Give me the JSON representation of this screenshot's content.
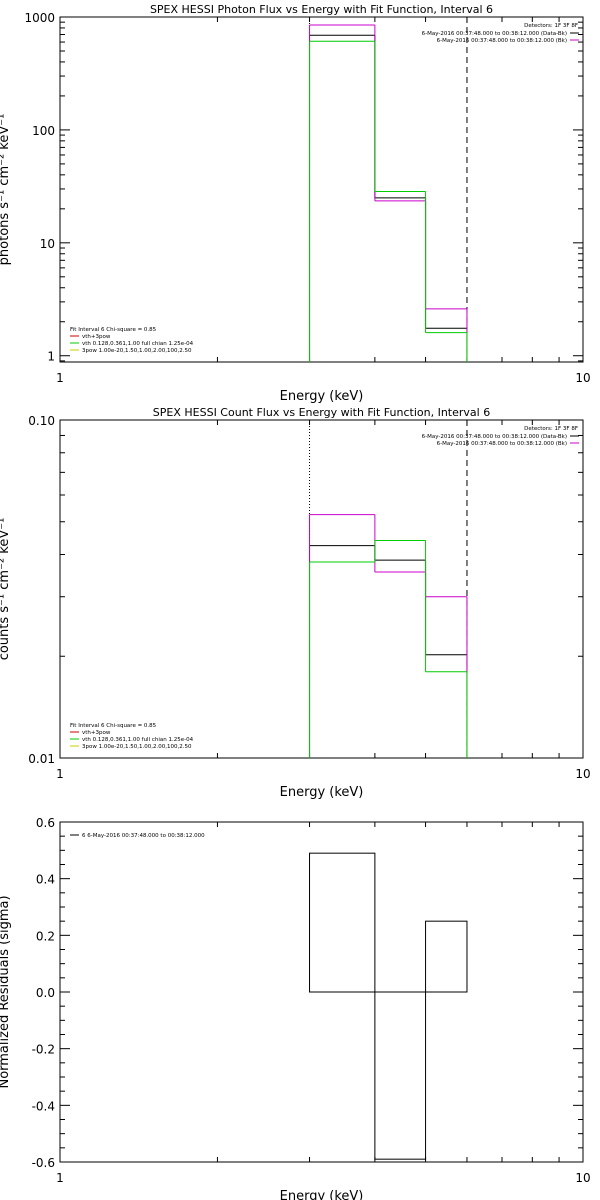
{
  "chart_data": [
    {
      "type": "line",
      "title": "SPEX HESSI Photon Flux vs Energy with Fit Function, Interval 6",
      "xlabel": "Energy (keV)",
      "ylabel": "photons s⁻¹ cm⁻² keV⁻¹",
      "xscale": "log",
      "yscale": "log",
      "xlim": [
        1,
        10
      ],
      "ylim": [
        0.88,
        1000
      ],
      "x_ticks": [
        {
          "v": 1,
          "label": "1"
        },
        {
          "v": 10,
          "label": "10"
        }
      ],
      "y_ticks": [
        {
          "v": 1,
          "label": "1"
        },
        {
          "v": 10,
          "label": "10"
        },
        {
          "v": 100,
          "label": "100"
        },
        {
          "v": 1000,
          "label": "1000"
        }
      ],
      "vlines": [
        {
          "x": 3,
          "style": "dotted",
          "color": "#000000"
        },
        {
          "x": 6,
          "style": "dashed",
          "color": "#000000"
        }
      ],
      "legend_top_right": {
        "header": "Detectors: 1F 3F 8F",
        "items": [
          {
            "text": "6-May-2016 00:37:48.000 to 00:38:12.000 (Data-Bk)",
            "color": "#000000"
          },
          {
            "text": "6-May-2016 00:37:48.000 to 00:38:12.000 (Bk)",
            "color": "#cc00cc"
          }
        ]
      },
      "legend_bottom_left": {
        "header": "Fit Interval 6   Chi-square = 0.85",
        "items": [
          {
            "text": "vth+3pow",
            "color": "#cc0000"
          },
          {
            "text": "vth 0.128,0.361,1.00  full chian 1.25e-04",
            "color": "#00cc00"
          },
          {
            "text": "3pow 1.00e-20,1.50,1.00,2.00,100,2.50",
            "color": "#cccc00"
          }
        ]
      },
      "series": [
        {
          "color": "#000000",
          "edges": [
            3,
            4,
            5,
            6
          ],
          "values": [
            690,
            25,
            1.75
          ]
        },
        {
          "color": "#cc00cc",
          "edges": [
            3,
            4,
            5,
            6
          ],
          "values": [
            850,
            23.5,
            2.6
          ]
        },
        {
          "color": "#00cc00",
          "edges": [
            3,
            4,
            5,
            6
          ],
          "values": [
            610,
            28.5,
            1.6
          ]
        }
      ]
    },
    {
      "type": "line",
      "title": "SPEX HESSI Count Flux vs Energy with Fit Function, Interval 6",
      "xlabel": "Energy (keV)",
      "ylabel": "counts s⁻¹ cm⁻² keV⁻¹",
      "xscale": "log",
      "yscale": "log",
      "xlim": [
        1,
        10
      ],
      "ylim": [
        0.01,
        0.1
      ],
      "x_ticks": [
        {
          "v": 1,
          "label": "1"
        },
        {
          "v": 10,
          "label": "10"
        }
      ],
      "y_ticks": [
        {
          "v": 0.01,
          "label": "0.01"
        },
        {
          "v": 0.1,
          "label": "0.10"
        }
      ],
      "vlines": [
        {
          "x": 3,
          "style": "dotted",
          "color": "#000000"
        },
        {
          "x": 6,
          "style": "dashed",
          "color": "#000000"
        }
      ],
      "legend_top_right": {
        "header": "Detectors: 1F 3F 8F",
        "items": [
          {
            "text": "6-May-2016 00:37:48.000 to 00:38:12.000 (Data-Bk)",
            "color": "#000000"
          },
          {
            "text": "6-May-2016 00:37:48.000 to 00:38:12.000 (Bk)",
            "color": "#cc00cc"
          }
        ]
      },
      "legend_bottom_left": {
        "header": "Fit Interval 6   Chi-square = 0.85",
        "items": [
          {
            "text": "vth+3pow",
            "color": "#cc0000"
          },
          {
            "text": "vth 0.128,0.361,1.00  full chian 1.25e-04",
            "color": "#00cc00"
          },
          {
            "text": "3pow 1.00e-20,1.50,1.00,2.00,100,2.50",
            "color": "#cccc00"
          }
        ]
      },
      "series": [
        {
          "color": "#000000",
          "edges": [
            3,
            4,
            5,
            6
          ],
          "values": [
            0.0425,
            0.0385,
            0.0202
          ]
        },
        {
          "color": "#cc00cc",
          "edges": [
            3,
            4,
            5,
            6
          ],
          "values": [
            0.0525,
            0.0355,
            0.03
          ]
        },
        {
          "color": "#00cc00",
          "edges": [
            3,
            4,
            5,
            6
          ],
          "values": [
            0.038,
            0.044,
            0.018
          ]
        }
      ]
    },
    {
      "type": "bar",
      "title": "",
      "xlabel": "Energy (keV)",
      "ylabel": "Normalized Residuals (sigma)",
      "xscale": "log",
      "yscale": "linear",
      "xlim": [
        1,
        10
      ],
      "ylim": [
        -0.6,
        0.6
      ],
      "x_ticks": [
        {
          "v": 1,
          "label": "1"
        },
        {
          "v": 10,
          "label": "10"
        }
      ],
      "y_ticks": [
        {
          "v": 0.6,
          "label": "0.6"
        },
        {
          "v": 0.4,
          "label": "0.4"
        },
        {
          "v": 0.2,
          "label": "0.2"
        },
        {
          "v": 0,
          "label": "0.0"
        },
        {
          "v": -0.2,
          "label": "-0.2"
        },
        {
          "v": -0.4,
          "label": "-0.4"
        },
        {
          "v": -0.6,
          "label": "-0.6"
        }
      ],
      "legend_top_left": {
        "items": [
          {
            "text": "6  6-May-2016 00:37:48.000 to 00:38:12.000",
            "color": "#000000"
          }
        ]
      },
      "series": [
        {
          "color": "#000000",
          "edges": [
            3,
            4,
            5,
            6
          ],
          "values": [
            0.49,
            -0.59,
            0.25
          ]
        }
      ]
    }
  ]
}
